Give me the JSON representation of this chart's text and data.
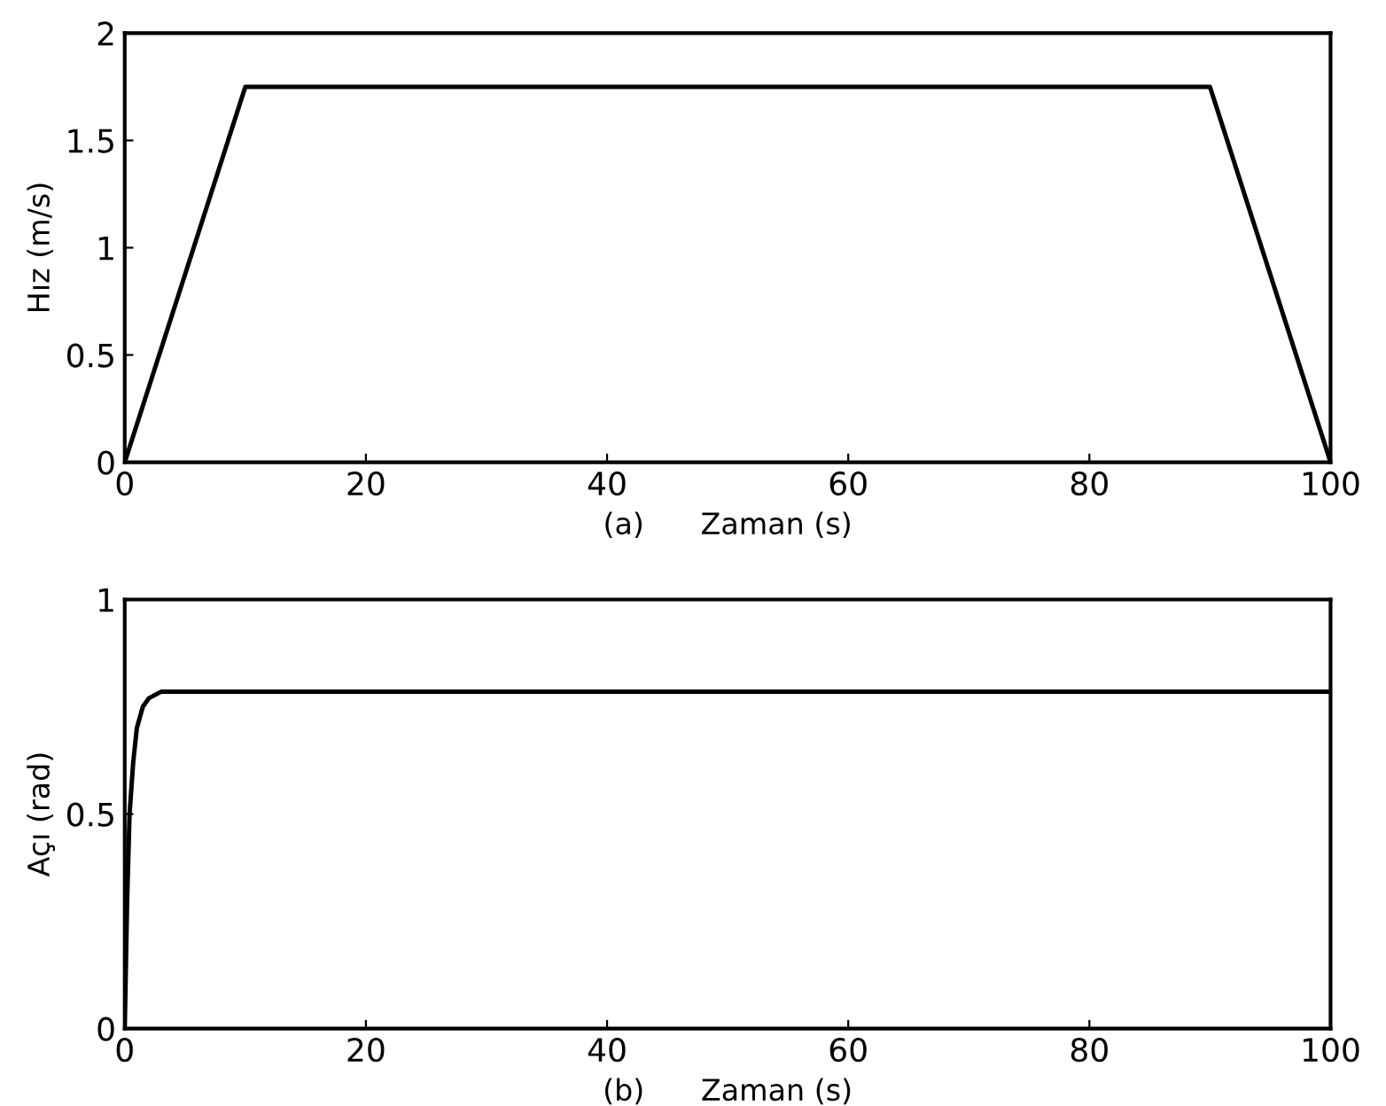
{
  "chart_data": [
    {
      "type": "line",
      "xlabel": "(a)      Zaman (s)",
      "ylabel": "Hız (m/s)",
      "x": [
        0,
        10,
        90,
        100
      ],
      "series": [
        {
          "color": "#000000",
          "values": [
            0,
            1.75,
            1.75,
            0
          ]
        }
      ],
      "xlim": [
        0,
        100
      ],
      "ylim": [
        0,
        2
      ],
      "xticks": [
        0,
        20,
        40,
        60,
        80,
        100
      ],
      "yticks": [
        0,
        0.5,
        1,
        1.5,
        2
      ],
      "grid": false,
      "legend": false
    },
    {
      "type": "line",
      "xlabel": "(b)      Zaman (s)",
      "ylabel": "Açı (rad)",
      "x": [
        0,
        0.2,
        0.4,
        0.7,
        1,
        1.5,
        2,
        3,
        100
      ],
      "series": [
        {
          "color": "#000000",
          "values": [
            0,
            0.3,
            0.5,
            0.62,
            0.7,
            0.75,
            0.77,
            0.785,
            0.785
          ]
        }
      ],
      "xlim": [
        0,
        100
      ],
      "ylim": [
        0,
        1
      ],
      "xticks": [
        0,
        20,
        40,
        60,
        80,
        100
      ],
      "yticks": [
        0,
        0.5,
        1
      ],
      "grid": false,
      "legend": false
    }
  ]
}
